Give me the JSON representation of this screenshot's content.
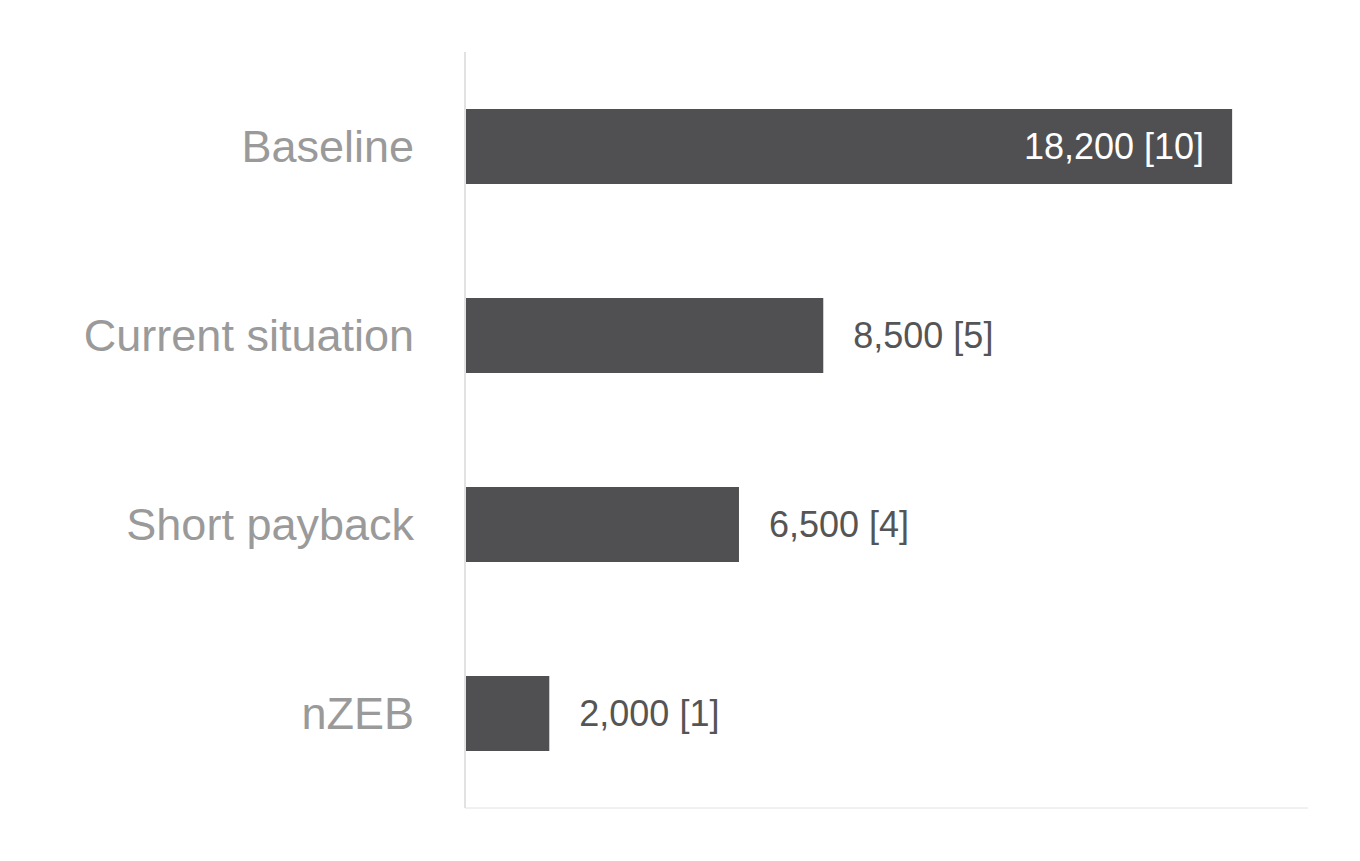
{
  "chart_data": {
    "type": "bar",
    "orientation": "horizontal",
    "categories": [
      "Baseline",
      "Current situation",
      "Short payback",
      "nZEB"
    ],
    "values": [
      18200,
      8500,
      6500,
      2000
    ],
    "value_labels": [
      "18,200 [10]",
      "8,500 [5]",
      "6,500 [4]",
      "2,000 [1]"
    ],
    "color": "#505052",
    "xlim": [
      0,
      20000
    ],
    "data_labels": true,
    "tick_labels": "y",
    "grid": false
  }
}
